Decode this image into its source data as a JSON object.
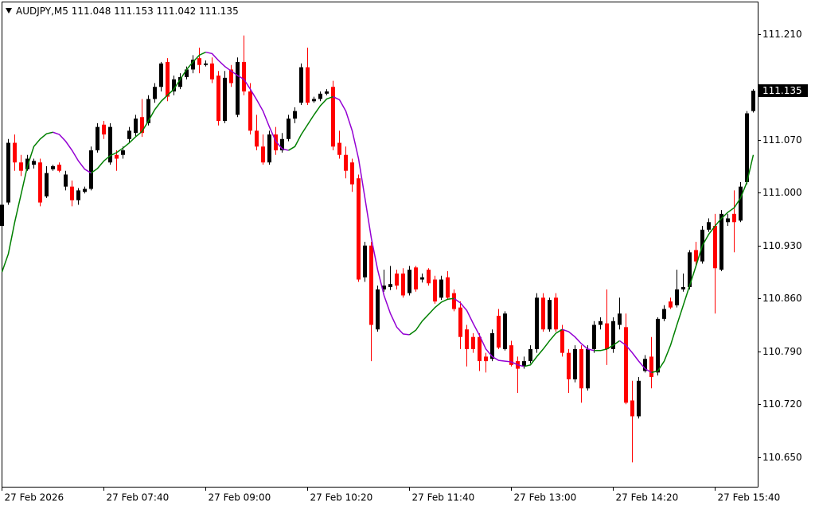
{
  "chart_data": {
    "type": "candlestick",
    "title": "AUDJPY,M5",
    "header_ohlc": [
      111.048,
      111.153,
      111.042,
      111.135
    ],
    "current_price": 111.135,
    "up_color": "#000000",
    "down_color": "#ff0000",
    "ylim": [
      110.605,
      111.255
    ],
    "yticks": [
      {
        "value": 111.21,
        "label": "111.210"
      },
      {
        "value": 111.07,
        "label": "111.070"
      },
      {
        "value": 111.0,
        "label": "111.000"
      },
      {
        "value": 110.93,
        "label": "110.930"
      },
      {
        "value": 110.86,
        "label": "110.860"
      },
      {
        "value": 110.79,
        "label": "110.790"
      },
      {
        "value": 110.72,
        "label": "110.720"
      },
      {
        "value": 110.65,
        "label": "110.650"
      }
    ],
    "categories": [
      "27 Feb 2026",
      null,
      null,
      null,
      null,
      null,
      null,
      null,
      null,
      null,
      null,
      null,
      null,
      null,
      null,
      null,
      "27 Feb 07:40",
      null,
      null,
      null,
      null,
      null,
      null,
      null,
      null,
      null,
      null,
      null,
      null,
      null,
      null,
      null,
      "27 Feb 09:00",
      null,
      null,
      null,
      null,
      null,
      null,
      null,
      null,
      null,
      null,
      null,
      null,
      null,
      null,
      null,
      "27 Feb 10:20",
      null,
      null,
      null,
      null,
      null,
      null,
      null,
      null,
      null,
      null,
      null,
      null,
      null,
      null,
      null,
      "27 Feb 11:40",
      null,
      null,
      null,
      null,
      null,
      null,
      null,
      null,
      null,
      null,
      null,
      null,
      null,
      null,
      null,
      "27 Feb 13:00",
      null,
      null,
      null,
      null,
      null,
      null,
      null,
      null,
      null,
      null,
      null,
      null,
      null,
      null,
      null,
      "27 Feb 14:20",
      null,
      null,
      null,
      null,
      null,
      null,
      null,
      null,
      null,
      null,
      null,
      null,
      null,
      null,
      null,
      "27 Feb 15:40",
      null,
      null,
      null,
      null,
      null,
      null
    ],
    "candles": [
      [
        110.956,
        110.987,
        110.951,
        110.984
      ],
      [
        110.987,
        111.071,
        110.984,
        111.066
      ],
      [
        111.066,
        111.077,
        111.029,
        111.04
      ],
      [
        111.04,
        111.05,
        111.022,
        111.029
      ],
      [
        111.031,
        111.05,
        111.029,
        111.045
      ],
      [
        111.037,
        111.045,
        111.032,
        111.042
      ],
      [
        111.04,
        111.045,
        110.982,
        110.987
      ],
      [
        110.995,
        111.035,
        110.993,
        111.026
      ],
      [
        111.031,
        111.037,
        111.029,
        111.035
      ],
      [
        111.037,
        111.04,
        111.027,
        111.029
      ],
      [
        111.008,
        111.029,
        111.003,
        111.024
      ],
      [
        111.008,
        111.016,
        110.982,
        110.99
      ],
      [
        110.99,
        111.006,
        110.984,
        111.003
      ],
      [
        111.001,
        111.008,
        110.999,
        111.005
      ],
      [
        111.005,
        111.061,
        111.003,
        111.056
      ],
      [
        111.056,
        111.092,
        111.053,
        111.087
      ],
      [
        111.09,
        111.095,
        111.071,
        111.077
      ],
      [
        111.04,
        111.092,
        111.037,
        111.087
      ],
      [
        111.05,
        111.056,
        111.029,
        111.045
      ],
      [
        111.05,
        111.061,
        111.045,
        111.056
      ],
      [
        111.071,
        111.087,
        111.066,
        111.082
      ],
      [
        111.079,
        111.103,
        111.074,
        111.098
      ],
      [
        111.1,
        111.124,
        111.074,
        111.079
      ],
      [
        111.092,
        111.129,
        111.089,
        111.124
      ],
      [
        111.124,
        111.145,
        111.119,
        111.14
      ],
      [
        111.14,
        111.173,
        111.134,
        111.171
      ],
      [
        111.173,
        111.178,
        111.121,
        111.127
      ],
      [
        111.134,
        111.155,
        111.129,
        111.15
      ],
      [
        111.14,
        111.158,
        111.137,
        111.153
      ],
      [
        111.153,
        111.167,
        111.15,
        111.163
      ],
      [
        111.163,
        111.182,
        111.158,
        111.176
      ],
      [
        111.178,
        111.192,
        111.158,
        111.169
      ],
      [
        111.169,
        111.175,
        111.167,
        111.171
      ],
      [
        111.171,
        111.179,
        111.145,
        111.15
      ],
      [
        111.155,
        111.161,
        111.089,
        111.095
      ],
      [
        111.095,
        111.161,
        111.092,
        111.152
      ],
      [
        111.163,
        111.169,
        111.14,
        111.145
      ],
      [
        111.103,
        111.179,
        111.1,
        111.173
      ],
      [
        111.173,
        111.208,
        111.129,
        111.134
      ],
      [
        111.134,
        111.145,
        111.077,
        111.082
      ],
      [
        111.082,
        111.103,
        111.056,
        111.061
      ],
      [
        111.061,
        111.077,
        111.037,
        111.04
      ],
      [
        111.04,
        111.082,
        111.037,
        111.077
      ],
      [
        111.077,
        111.087,
        111.05,
        111.056
      ],
      [
        111.056,
        111.079,
        111.053,
        111.071
      ],
      [
        111.071,
        111.103,
        111.068,
        111.098
      ],
      [
        111.098,
        111.113,
        111.092,
        111.108
      ],
      [
        111.119,
        111.171,
        111.116,
        111.166
      ],
      [
        111.166,
        111.192,
        111.116,
        111.119
      ],
      [
        111.121,
        111.127,
        111.119,
        111.124
      ],
      [
        111.124,
        111.134,
        111.121,
        111.131
      ],
      [
        111.131,
        111.137,
        111.129,
        111.134
      ],
      [
        111.14,
        111.148,
        111.056,
        111.061
      ],
      [
        111.066,
        111.082,
        111.045,
        111.05
      ],
      [
        111.05,
        111.061,
        111.019,
        111.029
      ],
      [
        111.04,
        111.045,
        111.001,
        111.011
      ],
      [
        111.019,
        111.024,
        110.882,
        110.885
      ],
      [
        110.888,
        110.935,
        110.882,
        110.93
      ],
      [
        110.93,
        110.935,
        110.777,
        110.825
      ],
      [
        110.819,
        110.877,
        110.816,
        110.872
      ],
      [
        110.872,
        110.898,
        110.869,
        110.877
      ],
      [
        110.875,
        110.903,
        110.871,
        110.879
      ],
      [
        110.893,
        110.898,
        110.872,
        110.877
      ],
      [
        110.893,
        110.9,
        110.861,
        110.864
      ],
      [
        110.867,
        110.903,
        110.864,
        110.898
      ],
      [
        110.901,
        110.903,
        110.869,
        110.872
      ],
      [
        110.885,
        110.893,
        110.881,
        110.888
      ],
      [
        110.898,
        110.9,
        110.877,
        110.88
      ],
      [
        110.885,
        110.89,
        110.853,
        110.856
      ],
      [
        110.861,
        110.89,
        110.858,
        110.885
      ],
      [
        110.888,
        110.896,
        110.858,
        110.861
      ],
      [
        110.867,
        110.872,
        110.843,
        110.846
      ],
      [
        110.848,
        110.856,
        110.793,
        110.809
      ],
      [
        110.819,
        110.825,
        110.77,
        110.793
      ],
      [
        110.809,
        110.814,
        110.788,
        110.793
      ],
      [
        110.809,
        110.814,
        110.764,
        110.777
      ],
      [
        110.783,
        110.788,
        110.762,
        110.777
      ],
      [
        110.78,
        110.819,
        110.777,
        110.814
      ],
      [
        110.837,
        110.846,
        110.793,
        110.795
      ],
      [
        110.793,
        110.843,
        110.791,
        110.84
      ],
      [
        110.798,
        110.804,
        110.77,
        110.772
      ],
      [
        110.777,
        110.783,
        110.735,
        110.767
      ],
      [
        110.77,
        110.783,
        110.767,
        110.777
      ],
      [
        110.777,
        110.798,
        110.774,
        110.793
      ],
      [
        110.793,
        110.867,
        110.788,
        110.861
      ],
      [
        110.861,
        110.867,
        110.816,
        110.819
      ],
      [
        110.819,
        110.861,
        110.816,
        110.858
      ],
      [
        110.861,
        110.867,
        110.816,
        110.819
      ],
      [
        110.819,
        110.825,
        110.783,
        110.788
      ],
      [
        110.788,
        110.793,
        110.735,
        110.753
      ],
      [
        110.753,
        110.798,
        110.749,
        110.793
      ],
      [
        110.793,
        110.798,
        110.722,
        110.741
      ],
      [
        110.741,
        110.798,
        110.738,
        110.793
      ],
      [
        110.793,
        110.83,
        110.788,
        110.825
      ],
      [
        110.825,
        110.835,
        110.819,
        110.83
      ],
      [
        110.827,
        110.872,
        110.772,
        110.793
      ],
      [
        110.793,
        110.835,
        110.788,
        110.83
      ],
      [
        110.825,
        110.861,
        110.819,
        110.84
      ],
      [
        110.822,
        110.84,
        110.72,
        110.722
      ],
      [
        110.725,
        110.751,
        110.643,
        110.704
      ],
      [
        110.704,
        110.756,
        110.701,
        110.751
      ],
      [
        110.764,
        110.785,
        110.762,
        110.78
      ],
      [
        110.783,
        110.809,
        110.741,
        110.756
      ],
      [
        110.762,
        110.835,
        110.758,
        110.833
      ],
      [
        110.833,
        110.851,
        110.83,
        110.846
      ],
      [
        110.856,
        110.861,
        110.846,
        110.848
      ],
      [
        110.851,
        110.898,
        110.848,
        110.872
      ],
      [
        110.872,
        110.893,
        110.869,
        110.875
      ],
      [
        110.875,
        110.924,
        110.872,
        110.921
      ],
      [
        110.924,
        110.935,
        110.903,
        110.909
      ],
      [
        110.909,
        110.956,
        110.906,
        110.951
      ],
      [
        110.951,
        110.966,
        110.948,
        110.961
      ],
      [
        110.956,
        110.972,
        110.84,
        110.9
      ],
      [
        110.898,
        110.977,
        110.896,
        110.972
      ],
      [
        110.961,
        110.972,
        110.956,
        110.966
      ],
      [
        110.972,
        111.003,
        110.921,
        110.961
      ],
      [
        110.963,
        111.014,
        110.961,
        111.008
      ],
      [
        111.014,
        111.108,
        111.011,
        111.105
      ],
      [
        111.108,
        111.137,
        111.106,
        111.135
      ]
    ],
    "ma": {
      "up_color": "#008000",
      "down_color": "#9400d3",
      "values": [
        110.895,
        110.919,
        110.961,
        110.998,
        111.035,
        111.061,
        111.071,
        111.078,
        111.08,
        111.077,
        111.068,
        111.056,
        111.042,
        111.031,
        111.026,
        111.032,
        111.042,
        111.049,
        111.053,
        111.059,
        111.066,
        111.074,
        111.081,
        111.095,
        111.11,
        111.121,
        111.129,
        111.137,
        111.15,
        111.163,
        111.173,
        111.182,
        111.186,
        111.184,
        111.175,
        111.167,
        111.161,
        111.155,
        111.15,
        111.137,
        111.123,
        111.108,
        111.087,
        111.068,
        111.058,
        111.056,
        111.061,
        111.077,
        111.09,
        111.103,
        111.115,
        111.124,
        111.127,
        111.123,
        111.108,
        111.082,
        111.045,
        110.993,
        110.94,
        110.898,
        110.864,
        110.84,
        110.822,
        110.813,
        110.812,
        110.818,
        110.83,
        110.839,
        110.848,
        110.855,
        110.859,
        110.86,
        110.854,
        110.844,
        110.827,
        110.811,
        110.793,
        110.783,
        110.778,
        110.777,
        110.776,
        110.772,
        110.77,
        110.772,
        110.783,
        110.793,
        110.804,
        110.814,
        110.819,
        110.816,
        110.809,
        110.8,
        110.793,
        110.791,
        110.791,
        110.793,
        110.798,
        110.804,
        110.798,
        110.788,
        110.777,
        110.767,
        110.762,
        110.764,
        110.777,
        110.798,
        110.825,
        110.851,
        110.877,
        110.903,
        110.93,
        110.945,
        110.956,
        110.966,
        110.974,
        110.98,
        110.993,
        111.014,
        111.05
      ]
    }
  }
}
